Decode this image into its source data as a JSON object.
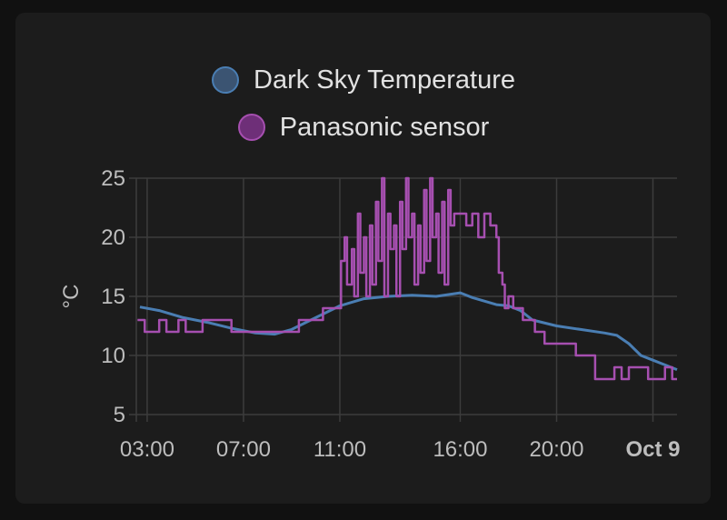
{
  "chart_data": {
    "type": "line",
    "ylabel": "°C",
    "ylim": [
      5,
      25
    ],
    "yticks": [
      5,
      10,
      15,
      20,
      25
    ],
    "xlim": [
      "02:40",
      "next-day 01:00"
    ],
    "xticks": [
      {
        "label": "03:00",
        "hour": 3,
        "bold": false
      },
      {
        "label": "07:00",
        "hour": 7,
        "bold": false
      },
      {
        "label": "11:00",
        "hour": 11,
        "bold": false
      },
      {
        "label": "16:00",
        "hour": 16,
        "bold": false
      },
      {
        "label": "20:00",
        "hour": 20,
        "bold": false
      },
      {
        "label": "Oct 9",
        "hour": 24,
        "bold": true
      }
    ],
    "grid": true,
    "legend_placement": "top-center",
    "series": [
      {
        "name": "Dark Sky Temperature",
        "color": "#4a7eb3",
        "fill": "#3b5472",
        "step": false,
        "points": [
          [
            2.7,
            14.1
          ],
          [
            3.5,
            13.8
          ],
          [
            4.5,
            13.2
          ],
          [
            5.5,
            12.8
          ],
          [
            6.5,
            12.3
          ],
          [
            7.5,
            11.9
          ],
          [
            8.3,
            11.8
          ],
          [
            9.0,
            12.2
          ],
          [
            10.0,
            13.2
          ],
          [
            11.0,
            14.2
          ],
          [
            12.0,
            14.8
          ],
          [
            13.0,
            15.0
          ],
          [
            14.0,
            15.1
          ],
          [
            15.0,
            15.0
          ],
          [
            16.0,
            15.3
          ],
          [
            16.5,
            14.9
          ],
          [
            17.5,
            14.3
          ],
          [
            18.0,
            14.2
          ],
          [
            18.5,
            13.8
          ],
          [
            19.0,
            13.0
          ],
          [
            20.0,
            12.5
          ],
          [
            21.0,
            12.2
          ],
          [
            22.0,
            11.9
          ],
          [
            22.5,
            11.7
          ],
          [
            23.0,
            11.0
          ],
          [
            23.5,
            10.0
          ],
          [
            24.0,
            9.6
          ],
          [
            24.5,
            9.2
          ],
          [
            25.0,
            8.8
          ]
        ]
      },
      {
        "name": "Panasonic sensor",
        "color": "#a64fb0",
        "fill": "#6e2f78",
        "step": true,
        "points": [
          [
            2.6,
            13
          ],
          [
            2.9,
            12
          ],
          [
            3.5,
            13
          ],
          [
            3.8,
            12
          ],
          [
            4.3,
            13
          ],
          [
            4.6,
            12
          ],
          [
            5.0,
            12
          ],
          [
            5.3,
            13
          ],
          [
            6.1,
            13
          ],
          [
            6.5,
            12
          ],
          [
            7.0,
            12
          ],
          [
            8.0,
            12
          ],
          [
            8.5,
            12
          ],
          [
            9.0,
            12
          ],
          [
            9.3,
            13
          ],
          [
            9.9,
            13
          ],
          [
            10.3,
            14
          ],
          [
            10.7,
            14
          ],
          [
            11.0,
            14
          ],
          [
            11.05,
            18
          ],
          [
            11.2,
            20
          ],
          [
            11.3,
            16
          ],
          [
            11.5,
            19
          ],
          [
            11.6,
            15
          ],
          [
            11.75,
            22
          ],
          [
            11.85,
            17
          ],
          [
            12.0,
            20
          ],
          [
            12.1,
            15
          ],
          [
            12.25,
            21
          ],
          [
            12.35,
            16
          ],
          [
            12.5,
            23
          ],
          [
            12.6,
            18
          ],
          [
            12.75,
            25
          ],
          [
            12.85,
            15
          ],
          [
            13.0,
            22
          ],
          [
            13.1,
            19
          ],
          [
            13.25,
            21
          ],
          [
            13.35,
            15
          ],
          [
            13.5,
            23
          ],
          [
            13.6,
            19
          ],
          [
            13.75,
            25
          ],
          [
            13.85,
            20
          ],
          [
            14.0,
            22
          ],
          [
            14.1,
            16
          ],
          [
            14.25,
            21
          ],
          [
            14.35,
            17
          ],
          [
            14.5,
            24
          ],
          [
            14.6,
            18
          ],
          [
            14.75,
            25
          ],
          [
            14.85,
            20
          ],
          [
            15.0,
            22
          ],
          [
            15.1,
            17
          ],
          [
            15.25,
            23
          ],
          [
            15.35,
            16
          ],
          [
            15.5,
            24
          ],
          [
            15.6,
            21
          ],
          [
            15.75,
            22
          ],
          [
            16.0,
            22
          ],
          [
            16.25,
            21
          ],
          [
            16.5,
            22
          ],
          [
            16.75,
            20
          ],
          [
            17.0,
            22
          ],
          [
            17.25,
            21
          ],
          [
            17.5,
            20
          ],
          [
            17.6,
            17
          ],
          [
            17.75,
            16
          ],
          [
            17.85,
            14
          ],
          [
            18.0,
            15
          ],
          [
            18.2,
            14
          ],
          [
            18.6,
            13
          ],
          [
            18.9,
            13
          ],
          [
            19.1,
            12
          ],
          [
            19.5,
            11
          ],
          [
            19.8,
            11
          ],
          [
            20.5,
            11
          ],
          [
            20.8,
            10
          ],
          [
            21.3,
            10
          ],
          [
            21.6,
            8
          ],
          [
            22.2,
            8
          ],
          [
            22.4,
            9
          ],
          [
            22.7,
            8
          ],
          [
            23.0,
            9
          ],
          [
            23.5,
            9
          ],
          [
            23.8,
            8
          ],
          [
            24.3,
            8
          ],
          [
            24.5,
            9
          ],
          [
            24.8,
            8
          ],
          [
            25.0,
            8
          ]
        ]
      }
    ]
  }
}
